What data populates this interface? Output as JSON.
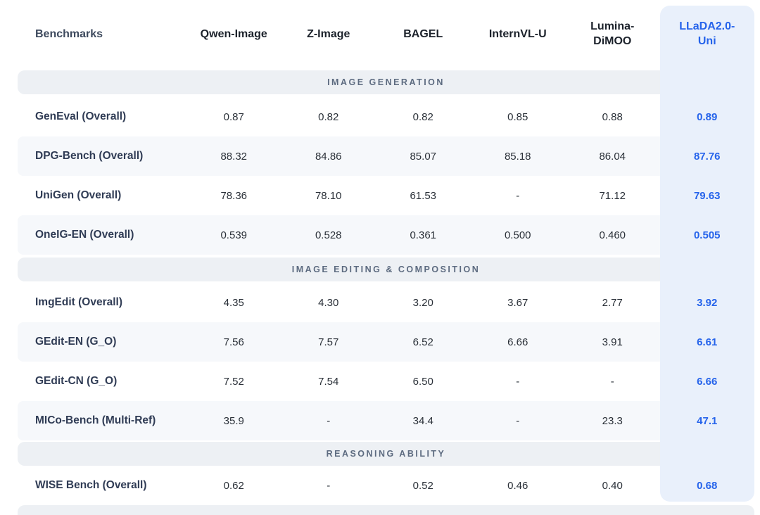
{
  "chart_data": {
    "type": "table",
    "columns": [
      "Benchmarks",
      "Qwen-Image",
      "Z-Image",
      "BAGEL",
      "InternVL-U",
      "Lumina-DiMOO",
      "LLaDA2.0-Uni"
    ],
    "highlight_column": "LLaDA2.0-Uni",
    "sections": [
      {
        "title": "IMAGE GENERATION",
        "rows": [
          {
            "benchmark": "GenEval (Overall)",
            "values": [
              "0.87",
              "0.82",
              "0.82",
              "0.85",
              "0.88",
              "0.89"
            ]
          },
          {
            "benchmark": "DPG-Bench (Overall)",
            "values": [
              "88.32",
              "84.86",
              "85.07",
              "85.18",
              "86.04",
              "87.76"
            ]
          },
          {
            "benchmark": "UniGen (Overall)",
            "values": [
              "78.36",
              "78.10",
              "61.53",
              "-",
              "71.12",
              "79.63"
            ]
          },
          {
            "benchmark": "OneIG-EN (Overall)",
            "values": [
              "0.539",
              "0.528",
              "0.361",
              "0.500",
              "0.460",
              "0.505"
            ]
          }
        ]
      },
      {
        "title": "IMAGE EDITING & COMPOSITION",
        "rows": [
          {
            "benchmark": "ImgEdit (Overall)",
            "values": [
              "4.35",
              "4.30",
              "3.20",
              "3.67",
              "2.77",
              "3.92"
            ]
          },
          {
            "benchmark": "GEdit-EN (G_O)",
            "values": [
              "7.56",
              "7.57",
              "6.52",
              "6.66",
              "3.91",
              "6.61"
            ]
          },
          {
            "benchmark": "GEdit-CN (G_O)",
            "values": [
              "7.52",
              "7.54",
              "6.50",
              "-",
              "-",
              "6.66"
            ]
          },
          {
            "benchmark": "MICo-Bench (Multi-Ref)",
            "values": [
              "35.9",
              "-",
              "34.4",
              "-",
              "23.3",
              "47.1"
            ]
          }
        ]
      },
      {
        "title": "REASONING ABILITY",
        "rows": [
          {
            "benchmark": "WISE Bench (Overall)",
            "values": [
              "0.62",
              "-",
              "0.52",
              "0.46",
              "0.40",
              "0.68"
            ]
          }
        ]
      }
    ],
    "colors": {
      "highlight_text": "#2563eb",
      "highlight_column_bg": "#e9f0fb",
      "section_band_bg": "#edf0f4",
      "section_title_text": "#5d6b80",
      "benchmark_name_text": "#303c55",
      "value_text": "#2a3038",
      "striped_row_bg": "#f6f8fb"
    }
  }
}
